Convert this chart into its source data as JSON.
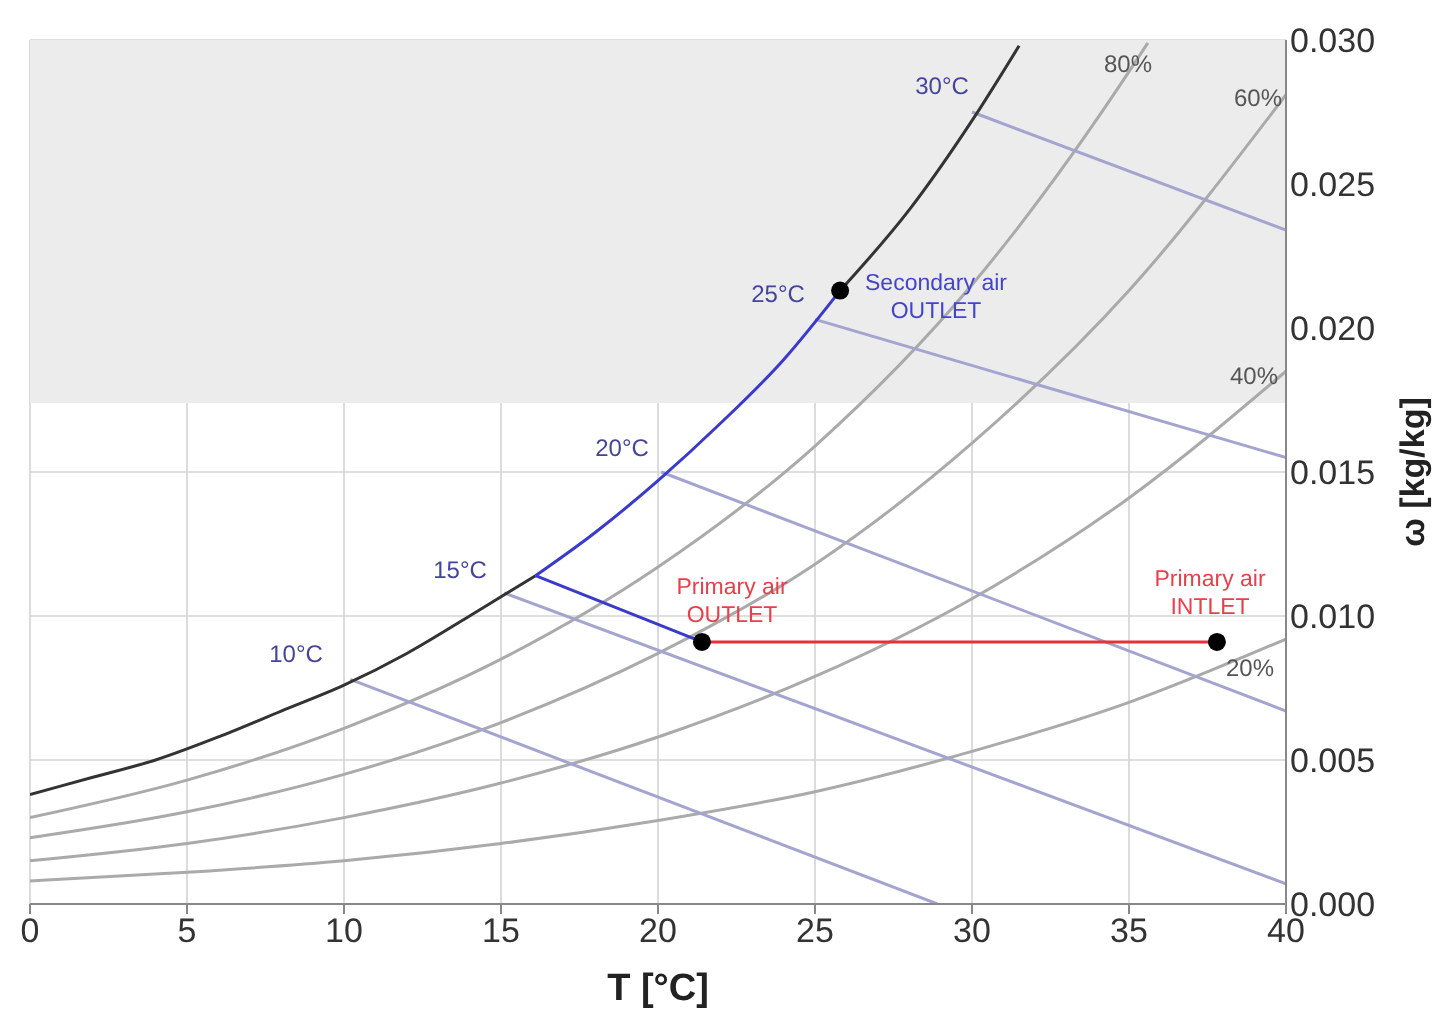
{
  "chart_data": {
    "type": "line",
    "xlabel": "T [°C]",
    "ylabel": "ω [kg/kg]",
    "xlim": [
      0,
      40
    ],
    "ylim": [
      0,
      0.03
    ],
    "xticks": [
      0,
      5,
      10,
      15,
      20,
      25,
      30,
      35,
      40
    ],
    "yticks": [
      {
        "value": 0,
        "label": "0.000"
      },
      {
        "value": 0.005,
        "label": "0.005"
      },
      {
        "value": 0.01,
        "label": "0.010"
      },
      {
        "value": 0.015,
        "label": "0.015"
      },
      {
        "value": 0.02,
        "label": "0.020"
      },
      {
        "value": 0.025,
        "label": "0.025"
      },
      {
        "value": 0.03,
        "label": "0.030"
      }
    ],
    "grid": true,
    "bands": [
      {
        "axis": "y",
        "from": 0.0174,
        "to": 0.03,
        "color": "#ececec"
      }
    ],
    "series": [
      {
        "color": "#aaaaaa",
        "x": [
          0,
          5,
          10,
          15,
          20,
          25,
          30,
          35,
          40
        ],
        "values": [
          0.0008,
          0.0011,
          0.0015,
          0.0021,
          0.0029,
          0.0039,
          0.0053,
          0.007,
          0.0092
        ]
      },
      {
        "color": "#aaaaaa",
        "x": [
          0,
          5,
          10,
          15,
          20,
          25,
          30,
          35,
          40
        ],
        "values": [
          0.0015,
          0.0021,
          0.003,
          0.0042,
          0.0058,
          0.0079,
          0.0106,
          0.0141,
          0.0185
        ]
      },
      {
        "color": "#aaaaaa",
        "x": [
          0,
          5,
          10,
          15,
          20,
          25,
          30,
          35,
          40
        ],
        "values": [
          0.0023,
          0.0032,
          0.0045,
          0.0063,
          0.0087,
          0.0118,
          0.016,
          0.0213,
          0.0281
        ]
      },
      {
        "color": "#aaaaaa",
        "x": [
          0,
          5,
          10,
          15,
          20,
          25,
          30,
          35,
          35.6
        ],
        "values": [
          0.003,
          0.0043,
          0.0061,
          0.0085,
          0.0117,
          0.0159,
          0.0215,
          0.0289,
          0.0299
        ]
      },
      {
        "color": "#a4a4d0",
        "x": [
          10.2,
          28.9
        ],
        "values": [
          0.0078,
          0
        ]
      },
      {
        "color": "#a4a4d0",
        "x": [
          15.1,
          40
        ],
        "values": [
          0.0108,
          0.0007
        ]
      },
      {
        "color": "#a4a4d0",
        "x": [
          20.1,
          40
        ],
        "values": [
          0.015,
          0.0067
        ]
      },
      {
        "color": "#a4a4d0",
        "x": [
          25,
          40
        ],
        "values": [
          0.0203,
          0.0155
        ]
      },
      {
        "color": "#a4a4d0",
        "x": [
          30,
          40
        ],
        "values": [
          0.0275,
          0.0234
        ]
      },
      {
        "color": "#333333",
        "x": [
          0,
          2,
          4,
          6,
          8,
          10,
          12,
          14,
          16.1
        ],
        "values": [
          0.0038,
          0.0044,
          0.005,
          0.0058,
          0.0067,
          0.0076,
          0.0087,
          0.01,
          0.0114
        ]
      },
      {
        "color": "#3a3acc",
        "x": [
          16.1,
          18,
          20,
          22,
          24,
          25.8
        ],
        "values": [
          0.0114,
          0.0129,
          0.0147,
          0.0167,
          0.0189,
          0.0213
        ]
      },
      {
        "color": "#333333",
        "x": [
          25.8,
          28,
          30,
          31.5
        ],
        "values": [
          0.0213,
          0.0241,
          0.0272,
          0.0298
        ]
      },
      {
        "color": "#3a3acc",
        "x": [
          16.1,
          21.4
        ],
        "values": [
          0.0114,
          0.0091
        ]
      },
      {
        "color": "#e8303a",
        "x": [
          21.4,
          37.8
        ],
        "values": [
          0.0091,
          0.0091
        ]
      },
      {
        "type": "scatter",
        "marker": "circle",
        "color": "#000000",
        "x": [
          21.4,
          37.8,
          25.8
        ],
        "values": [
          0.0091,
          0.0091,
          0.0213
        ]
      }
    ],
    "annotations": [
      "10°C",
      "15°C",
      "20°C",
      "25°C",
      "30°C",
      "80%",
      "60%",
      "40%",
      "20%",
      "Secondary air\nOUTLET",
      "Primary air\nOUTLET",
      "Primary air\nINTLET"
    ]
  }
}
